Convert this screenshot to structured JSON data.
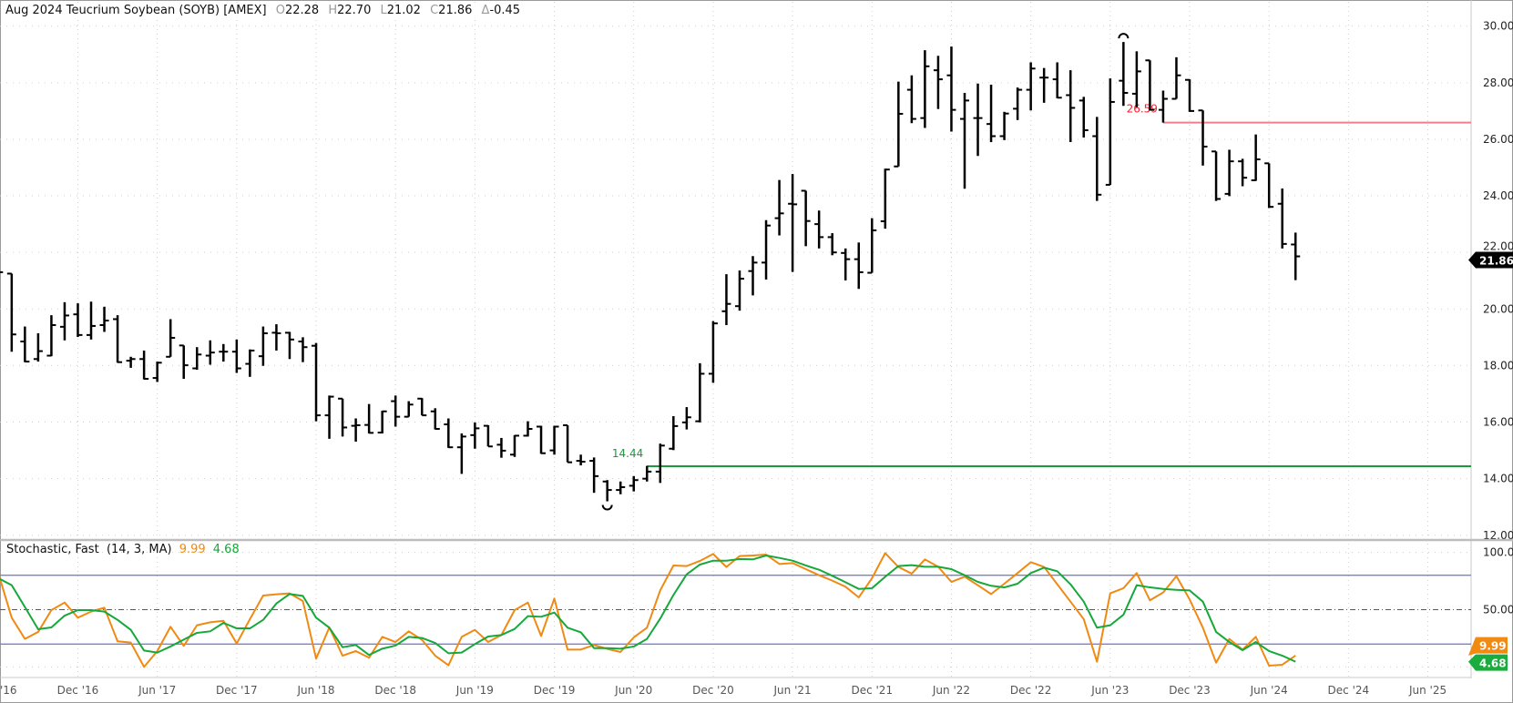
{
  "header": {
    "title": "Aug 2024 Teucrium Soybean (SOYB) [AMEX]",
    "open_label": "O",
    "open": "22.28",
    "high_label": "H",
    "high": "22.70",
    "low_label": "L",
    "low": "21.02",
    "close_label": "C",
    "close": "21.86",
    "change_label": "Δ",
    "change": "-0.45"
  },
  "stochastic_legend": {
    "name": "Stochastic, Fast",
    "params": "(14, 3, MA)",
    "k_value": "9.99",
    "d_value": "4.68"
  },
  "colors": {
    "bars": "#000000",
    "k_line": "#f08a12",
    "d_line": "#16a83a",
    "resistance": "#f07f8e",
    "support": "#1a9a3a",
    "bands": "#7b7fd0"
  },
  "chart_data": [
    {
      "type": "ohlc",
      "interval": "monthly",
      "price_axis": {
        "range": [
          12,
          30
        ],
        "ticks": [
          "30.00",
          "28.00",
          "26.00",
          "24.00",
          "22.00",
          "20.00",
          "18.00",
          "16.00",
          "14.00",
          "12.00"
        ],
        "grid": true
      },
      "x_ticks": [
        "'16",
        "Dec '16",
        "Jun '17",
        "Dec '17",
        "Jun '18",
        "Dec '18",
        "Jun '19",
        "Dec '19",
        "Jun '20",
        "Dec '20",
        "Jun '21",
        "Dec '21",
        "Jun '22",
        "Dec '22",
        "Jun '23",
        "Dec '23",
        "Jun '24",
        "Dec '24",
        "Jun '25"
      ],
      "last_price_tag": "21.86",
      "annotations": {
        "resistance": {
          "value": 26.59,
          "label": "26.59",
          "from": "2023-10"
        },
        "support": {
          "value": 14.44,
          "label": "14.44",
          "from": "2020-07"
        },
        "high_marker": "2023-07",
        "low_marker": "2020-04"
      },
      "x": [
        "2016-06",
        "2016-07",
        "2016-08",
        "2016-09",
        "2016-10",
        "2016-11",
        "2016-12",
        "2017-01",
        "2017-02",
        "2017-03",
        "2017-04",
        "2017-05",
        "2017-06",
        "2017-07",
        "2017-08",
        "2017-09",
        "2017-10",
        "2017-11",
        "2017-12",
        "2018-01",
        "2018-02",
        "2018-03",
        "2018-04",
        "2018-05",
        "2018-06",
        "2018-07",
        "2018-08",
        "2018-09",
        "2018-10",
        "2018-11",
        "2018-12",
        "2019-01",
        "2019-02",
        "2019-03",
        "2019-04",
        "2019-05",
        "2019-06",
        "2019-07",
        "2019-08",
        "2019-09",
        "2019-10",
        "2019-11",
        "2019-12",
        "2020-01",
        "2020-02",
        "2020-03",
        "2020-04",
        "2020-05",
        "2020-06",
        "2020-07",
        "2020-08",
        "2020-09",
        "2020-10",
        "2020-11",
        "2020-12",
        "2021-01",
        "2021-02",
        "2021-03",
        "2021-04",
        "2021-05",
        "2021-06",
        "2021-07",
        "2021-08",
        "2021-09",
        "2021-10",
        "2021-11",
        "2021-12",
        "2022-01",
        "2022-02",
        "2022-03",
        "2022-04",
        "2022-05",
        "2022-06",
        "2022-07",
        "2022-08",
        "2022-09",
        "2022-10",
        "2022-11",
        "2022-12",
        "2023-01",
        "2023-02",
        "2023-03",
        "2023-04",
        "2023-05",
        "2023-06",
        "2023-07",
        "2023-08",
        "2023-09",
        "2023-10",
        "2023-11",
        "2023-12",
        "2024-01",
        "2024-02",
        "2024-03",
        "2024-04",
        "2024-05",
        "2024-06",
        "2024-07",
        "2024-08"
      ],
      "ohlc": [
        [
          21.6,
          21.7,
          21.2,
          21.3
        ],
        [
          21.25,
          21.25,
          18.49,
          19.1
        ],
        [
          18.85,
          19.38,
          18.12,
          18.14
        ],
        [
          18.23,
          19.14,
          18.14,
          18.51
        ],
        [
          18.35,
          19.78,
          18.33,
          19.43
        ],
        [
          19.37,
          20.24,
          18.89,
          19.77
        ],
        [
          19.81,
          20.2,
          19.01,
          19.08
        ],
        [
          19.08,
          20.26,
          18.92,
          19.4
        ],
        [
          19.43,
          20.08,
          19.19,
          19.59
        ],
        [
          19.64,
          19.78,
          18.1,
          18.12
        ],
        [
          18.17,
          18.31,
          17.92,
          18.23
        ],
        [
          18.23,
          18.53,
          17.51,
          17.53
        ],
        [
          17.56,
          18.14,
          17.42,
          18.1
        ],
        [
          18.31,
          19.64,
          18.31,
          18.98
        ],
        [
          18.71,
          18.71,
          17.53,
          18.01
        ],
        [
          17.9,
          18.65,
          17.85,
          18.39
        ],
        [
          18.35,
          18.89,
          18.03,
          18.46
        ],
        [
          18.49,
          18.76,
          18.14,
          18.49
        ],
        [
          18.49,
          18.92,
          17.74,
          17.9
        ],
        [
          18.06,
          18.57,
          17.6,
          18.53
        ],
        [
          18.33,
          19.38,
          17.99,
          19.14
        ],
        [
          19.16,
          19.46,
          18.53,
          19.14
        ],
        [
          19.16,
          19.19,
          18.23,
          18.92
        ],
        [
          18.85,
          19.0,
          18.12,
          18.65
        ],
        [
          18.7,
          18.8,
          16.03,
          16.24
        ],
        [
          16.24,
          16.94,
          15.41,
          16.9
        ],
        [
          16.83,
          16.83,
          15.49,
          15.81
        ],
        [
          15.87,
          16.13,
          15.31,
          15.89
        ],
        [
          15.9,
          16.64,
          15.6,
          15.62
        ],
        [
          15.63,
          16.4,
          15.6,
          16.38
        ],
        [
          16.74,
          16.94,
          15.84,
          16.19
        ],
        [
          16.19,
          16.74,
          16.19,
          16.62
        ],
        [
          16.83,
          16.85,
          16.24,
          16.24
        ],
        [
          16.38,
          16.49,
          15.74,
          15.76
        ],
        [
          15.92,
          16.13,
          15.09,
          15.11
        ],
        [
          15.11,
          15.6,
          14.17,
          15.49
        ],
        [
          15.54,
          15.99,
          15.06,
          15.78
        ],
        [
          15.87,
          15.89,
          15.14,
          15.14
        ],
        [
          15.2,
          15.44,
          14.74,
          14.99
        ],
        [
          14.85,
          15.54,
          14.77,
          15.52
        ],
        [
          15.52,
          16.03,
          15.49,
          15.76
        ],
        [
          15.84,
          15.87,
          14.88,
          14.9
        ],
        [
          15.0,
          15.87,
          14.85,
          15.84
        ],
        [
          15.89,
          15.89,
          14.58,
          14.58
        ],
        [
          14.63,
          14.85,
          14.47,
          14.6
        ],
        [
          14.63,
          14.75,
          13.5,
          14.09
        ],
        [
          13.9,
          13.95,
          13.2,
          13.6
        ],
        [
          13.6,
          13.9,
          13.45,
          13.7
        ],
        [
          13.75,
          14.09,
          13.55,
          13.95
        ],
        [
          14.0,
          14.45,
          13.9,
          14.25
        ],
        [
          14.25,
          15.24,
          13.85,
          15.17
        ],
        [
          15.06,
          16.21,
          15.01,
          15.86
        ],
        [
          15.99,
          16.53,
          15.74,
          16.17
        ],
        [
          16.03,
          18.08,
          15.99,
          17.71
        ],
        [
          17.71,
          19.57,
          17.39,
          19.49
        ],
        [
          19.92,
          21.23,
          19.43,
          20.18
        ],
        [
          20.1,
          21.36,
          19.94,
          21.07
        ],
        [
          21.34,
          21.87,
          20.48,
          21.64
        ],
        [
          21.64,
          23.14,
          21.04,
          22.95
        ],
        [
          23.21,
          24.56,
          22.6,
          23.38
        ],
        [
          23.72,
          24.77,
          21.31,
          23.7
        ],
        [
          24.18,
          24.18,
          22.22,
          23.11
        ],
        [
          23.0,
          23.48,
          22.14,
          22.54
        ],
        [
          22.54,
          22.68,
          21.9,
          22.0
        ],
        [
          21.98,
          22.14,
          21.01,
          21.76
        ],
        [
          21.76,
          22.35,
          20.71,
          21.3
        ],
        [
          21.28,
          23.21,
          21.28,
          22.78
        ],
        [
          23.1,
          24.96,
          22.84,
          24.93
        ],
        [
          25.04,
          28.04,
          25.04,
          26.9
        ],
        [
          27.75,
          28.26,
          26.57,
          26.72
        ],
        [
          26.75,
          29.15,
          26.4,
          28.58
        ],
        [
          28.44,
          28.95,
          27.07,
          28.12
        ],
        [
          28.26,
          29.28,
          26.27,
          27.04
        ],
        [
          26.72,
          27.64,
          24.25,
          27.37
        ],
        [
          26.75,
          27.97,
          25.41,
          26.75
        ],
        [
          26.54,
          27.93,
          25.9,
          26.11
        ],
        [
          26.11,
          26.97,
          25.97,
          26.91
        ],
        [
          27.08,
          27.83,
          26.68,
          27.75
        ],
        [
          27.75,
          28.72,
          27.02,
          28.5
        ],
        [
          28.18,
          28.52,
          27.29,
          28.18
        ],
        [
          28.12,
          28.72,
          27.45,
          27.47
        ],
        [
          27.56,
          28.44,
          25.9,
          27.11
        ],
        [
          27.37,
          27.5,
          26.06,
          26.32
        ],
        [
          26.11,
          26.79,
          23.82,
          24.04
        ],
        [
          24.39,
          28.15,
          24.39,
          27.32
        ],
        [
          28.07,
          29.44,
          27.18,
          27.64
        ],
        [
          27.61,
          29.11,
          27.13,
          28.4
        ],
        [
          28.79,
          28.79,
          27.02,
          27.04
        ],
        [
          27.04,
          27.72,
          26.59,
          27.43
        ],
        [
          27.43,
          28.9,
          27.43,
          28.26
        ],
        [
          28.1,
          28.12,
          26.97,
          27.0
        ],
        [
          27.02,
          27.02,
          25.07,
          25.74
        ],
        [
          25.57,
          25.57,
          23.82,
          23.89
        ],
        [
          24.07,
          25.63,
          23.99,
          25.22
        ],
        [
          25.22,
          25.31,
          24.34,
          24.64
        ],
        [
          24.55,
          26.17,
          24.53,
          25.29
        ],
        [
          25.15,
          25.15,
          23.57,
          23.61
        ],
        [
          23.72,
          24.26,
          22.14,
          22.3
        ],
        [
          22.28,
          22.7,
          21.02,
          21.86
        ]
      ]
    },
    {
      "type": "line",
      "title": "Stochastic, Fast (14, 3, MA)",
      "y_axis": {
        "range": [
          0,
          100
        ],
        "ticks": [
          "100.00",
          "50.00"
        ],
        "bands": [
          80,
          50,
          20
        ]
      },
      "value_tags": [
        "9.99",
        "4.68"
      ],
      "series": [
        {
          "name": "%K",
          "values": [
            81.4,
            43.0,
            24.5,
            30.6,
            49.6,
            56.2,
            43.0,
            48.3,
            51.7,
            22.4,
            21.3,
            0.1,
            13.9,
            35.1,
            18.4,
            36.4,
            39.0,
            40.3,
            20.5,
            41.7,
            62.3,
            63.4,
            64.2,
            57.5,
            7.3,
            34.5,
            9.9,
            13.9,
            8.1,
            26.3,
            21.8,
            31.1,
            23.7,
            9.9,
            1.5,
            26.3,
            32.4,
            21.8,
            27.9,
            49.6,
            56.2,
            27.1,
            59.7,
            15.2,
            15.2,
            19.2,
            15.8,
            13.1,
            25.8,
            34.3,
            66.8,
            88.5,
            88.0,
            92.5,
            98.5,
            87.2,
            96.7,
            97.2,
            98.0,
            89.8,
            90.6,
            85.3,
            80.0,
            75.3,
            70.0,
            60.7,
            77.4,
            99.3,
            87.2,
            81.4,
            93.8,
            87.4,
            74.2,
            78.7,
            71.3,
            63.6,
            72.6,
            81.9,
            91.4,
            87.2,
            72.1,
            57.0,
            41.7,
            4.6,
            64.2,
            68.7,
            81.9,
            58.1,
            65.0,
            79.2,
            58.9,
            34.3,
            3.8,
            24.5,
            15.2,
            26.3,
            1.2,
            2.0,
            9.99
          ]
        },
        {
          "name": "%D",
          "values": [
            77.4,
            71.3,
            52.3,
            32.9,
            34.5,
            44.8,
            49.6,
            49.6,
            48.3,
            41.1,
            32.4,
            14.4,
            12.6,
            17.9,
            23.9,
            29.8,
            31.1,
            38.5,
            33.7,
            33.7,
            41.1,
            55.4,
            63.6,
            62.0,
            43.0,
            34.3,
            17.3,
            19.2,
            10.5,
            16.0,
            18.7,
            26.3,
            25.3,
            21.0,
            12.0,
            12.6,
            20.0,
            26.6,
            27.9,
            33.2,
            44.3,
            43.8,
            47.5,
            34.3,
            30.3,
            16.5,
            16.5,
            16.0,
            17.9,
            24.5,
            42.2,
            62.8,
            80.8,
            89.3,
            92.7,
            92.7,
            94.1,
            93.8,
            97.2,
            95.1,
            92.7,
            88.5,
            84.8,
            79.5,
            73.9,
            68.1,
            68.7,
            78.7,
            88.0,
            88.8,
            87.4,
            87.4,
            85.3,
            80.0,
            74.2,
            70.8,
            69.4,
            72.6,
            81.9,
            86.6,
            83.5,
            72.1,
            57.0,
            34.3,
            36.4,
            45.6,
            71.3,
            69.4,
            68.1,
            67.3,
            66.8,
            57.0,
            30.6,
            21.8,
            14.7,
            21.8,
            13.9,
            9.9,
            4.68
          ]
        }
      ]
    }
  ]
}
